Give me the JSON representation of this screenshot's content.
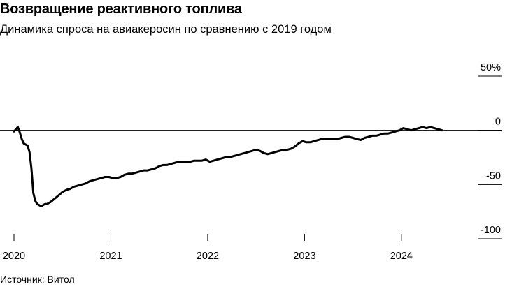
{
  "chart_data": {
    "type": "line",
    "title": "Возвращение реактивного топлива",
    "subtitle": "Динамика спроса на авиакеросин по сравнению с 2019 годом",
    "source": "Источник: Витол",
    "xlabel": "",
    "ylabel": "",
    "xlim": [
      2020.0,
      2024.55
    ],
    "ylim": [
      -100,
      50
    ],
    "x_ticks": [
      2020,
      2021,
      2022,
      2023,
      2024
    ],
    "x_tick_labels": [
      "2020",
      "2021",
      "2022",
      "2023",
      "2024"
    ],
    "y_ticks": [
      50,
      0,
      -50,
      -100
    ],
    "y_tick_labels": [
      "50%",
      "0",
      "-50",
      "-100"
    ],
    "y_tick_position": "right",
    "grid": false,
    "zero_line": true,
    "line_color": "#000000",
    "series": [
      {
        "x": [
          2020.0,
          2020.02,
          2020.04,
          2020.06,
          2020.08,
          2020.1,
          2020.12,
          2020.14,
          2020.16,
          2020.18,
          2020.2,
          2020.22,
          2020.24,
          2020.26,
          2020.28,
          2020.3,
          2020.32,
          2020.34,
          2020.36,
          2020.38,
          2020.42,
          2020.46,
          2020.5,
          2020.54,
          2020.58,
          2020.62,
          2020.66,
          2020.7,
          2020.74,
          2020.78,
          2020.82,
          2020.86,
          2020.9,
          2020.94,
          2020.98,
          2021.02,
          2021.06,
          2021.1,
          2021.14,
          2021.18,
          2021.22,
          2021.26,
          2021.3,
          2021.34,
          2021.38,
          2021.42,
          2021.46,
          2021.5,
          2021.54,
          2021.58,
          2021.62,
          2021.66,
          2021.7,
          2021.74,
          2021.78,
          2021.82,
          2021.86,
          2021.9,
          2021.94,
          2021.98,
          2022.02,
          2022.06,
          2022.1,
          2022.14,
          2022.18,
          2022.22,
          2022.26,
          2022.3,
          2022.34,
          2022.38,
          2022.42,
          2022.46,
          2022.5,
          2022.54,
          2022.58,
          2022.62,
          2022.66,
          2022.7,
          2022.74,
          2022.78,
          2022.82,
          2022.86,
          2022.9,
          2022.94,
          2022.98,
          2023.02,
          2023.06,
          2023.1,
          2023.14,
          2023.18,
          2023.22,
          2023.26,
          2023.3,
          2023.34,
          2023.38,
          2023.42,
          2023.46,
          2023.5,
          2023.54,
          2023.58,
          2023.62,
          2023.66,
          2023.7,
          2023.74,
          2023.78,
          2023.82,
          2023.86,
          2023.9,
          2023.94,
          2023.98,
          2024.02,
          2024.06,
          2024.1,
          2024.14,
          2024.18,
          2024.22,
          2024.26,
          2024.3,
          2024.34,
          2024.38,
          2024.42
        ],
        "values": [
          -1,
          1,
          3,
          -2,
          -8,
          -12,
          -13,
          -14,
          -20,
          -35,
          -58,
          -65,
          -68,
          -69,
          -70,
          -69,
          -68,
          -68,
          -67,
          -66,
          -63,
          -60,
          -57,
          -55,
          -54,
          -52,
          -51,
          -50,
          -49,
          -47,
          -46,
          -45,
          -44,
          -43,
          -43,
          -44,
          -44,
          -43,
          -41,
          -40,
          -40,
          -39,
          -38,
          -37,
          -37,
          -36,
          -35,
          -33,
          -32,
          -32,
          -31,
          -30,
          -29,
          -29,
          -29,
          -29,
          -28,
          -28,
          -28,
          -27,
          -29,
          -28,
          -27,
          -26,
          -25,
          -25,
          -24,
          -23,
          -22,
          -21,
          -20,
          -19,
          -18,
          -19,
          -21,
          -22,
          -21,
          -20,
          -19,
          -18,
          -18,
          -17,
          -15,
          -12,
          -10,
          -11,
          -11,
          -10,
          -9,
          -8,
          -8,
          -8,
          -8,
          -8,
          -7,
          -6,
          -6,
          -7,
          -8,
          -9,
          -7,
          -6,
          -5,
          -5,
          -4,
          -3,
          -3,
          -2,
          -1,
          0,
          2,
          1,
          0,
          1,
          2,
          3,
          2,
          3,
          2,
          1,
          0
        ]
      }
    ]
  }
}
